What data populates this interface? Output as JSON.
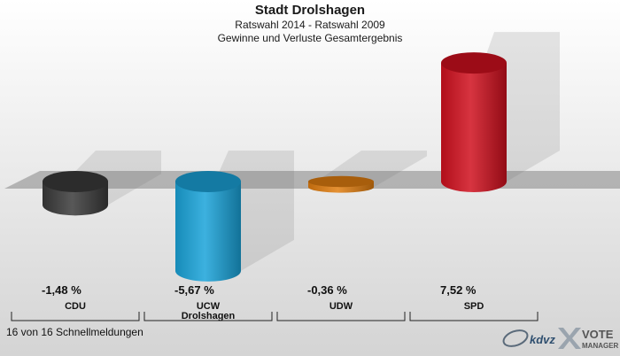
{
  "header": {
    "title": "Stadt Drolshagen",
    "subtitle1": "Ratswahl 2014 - Ratswahl 2009",
    "subtitle2": "Gewinne und Verluste Gesamtergebnis"
  },
  "chart_data": {
    "type": "bar",
    "categories": [
      "CDU",
      "UCW Drolshagen",
      "UDW",
      "SPD"
    ],
    "category_lines": [
      [
        "CDU"
      ],
      [
        "UCW",
        "Drolshagen"
      ],
      [
        "UDW"
      ],
      [
        "SPD"
      ]
    ],
    "values": [
      -1.48,
      -5.67,
      -0.36,
      7.52
    ],
    "value_labels": [
      "-1,48 %",
      "-5,67 %",
      "-0,36 %",
      "7,52 %"
    ],
    "colors": [
      "#3a3a3a",
      "#1aa3d9",
      "#e07d10",
      "#d0101e"
    ],
    "ylim": [
      -7,
      9
    ],
    "grid": false
  },
  "footer": {
    "status": "16 von 16 Schnellmeldungen"
  },
  "logo": {
    "brand": "kdvz",
    "line1": "VOTE",
    "line2": "MANAGER"
  }
}
